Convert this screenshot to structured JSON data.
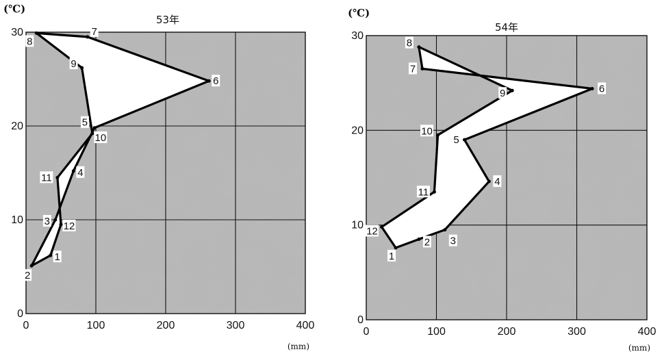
{
  "chart_data": [
    {
      "type": "line",
      "title": "53年",
      "ylabel": "(℃)",
      "xlabel": "(mm)",
      "xlim": [
        0,
        400
      ],
      "ylim": [
        0,
        30
      ],
      "xticks": [
        "0",
        "100",
        "200",
        "300",
        "400"
      ],
      "yticks": [
        "0",
        "10",
        "20",
        "30"
      ],
      "grid": true,
      "points": [
        {
          "label": "1",
          "x": 35,
          "y": 6.2
        },
        {
          "label": "2",
          "x": 8,
          "y": 5.1
        },
        {
          "label": "3",
          "x": 42,
          "y": 10.0
        },
        {
          "label": "4",
          "x": 68,
          "y": 15.2
        },
        {
          "label": "5",
          "x": 98,
          "y": 19.8
        },
        {
          "label": "6",
          "x": 262,
          "y": 24.8
        },
        {
          "label": "7",
          "x": 88,
          "y": 29.5
        },
        {
          "label": "8",
          "x": 15,
          "y": 29.9
        },
        {
          "label": "9",
          "x": 80,
          "y": 26.2
        },
        {
          "label": "10",
          "x": 95,
          "y": 19.2
        },
        {
          "label": "11",
          "x": 45,
          "y": 14.5
        },
        {
          "label": "12",
          "x": 50,
          "y": 9.5
        }
      ]
    },
    {
      "type": "line",
      "title": "54年",
      "ylabel": "(℃)",
      "xlabel": "(mm)",
      "xlim": [
        0,
        400
      ],
      "ylim": [
        0,
        30
      ],
      "xticks": [
        "0",
        "100",
        "200",
        "300",
        "400"
      ],
      "yticks": [
        "0",
        "10",
        "20",
        "30"
      ],
      "grid": true,
      "points": [
        {
          "label": "1",
          "x": 42,
          "y": 7.6
        },
        {
          "label": "2",
          "x": 75,
          "y": 8.5
        },
        {
          "label": "3",
          "x": 112,
          "y": 9.5
        },
        {
          "label": "4",
          "x": 175,
          "y": 14.6
        },
        {
          "label": "5",
          "x": 140,
          "y": 19.0
        },
        {
          "label": "6",
          "x": 322,
          "y": 24.4
        },
        {
          "label": "7",
          "x": 80,
          "y": 26.5
        },
        {
          "label": "8",
          "x": 75,
          "y": 28.8
        },
        {
          "label": "9",
          "x": 208,
          "y": 24.2
        },
        {
          "label": "10",
          "x": 102,
          "y": 19.5
        },
        {
          "label": "11",
          "x": 97,
          "y": 13.5
        },
        {
          "label": "12",
          "x": 22,
          "y": 9.8
        }
      ]
    }
  ]
}
